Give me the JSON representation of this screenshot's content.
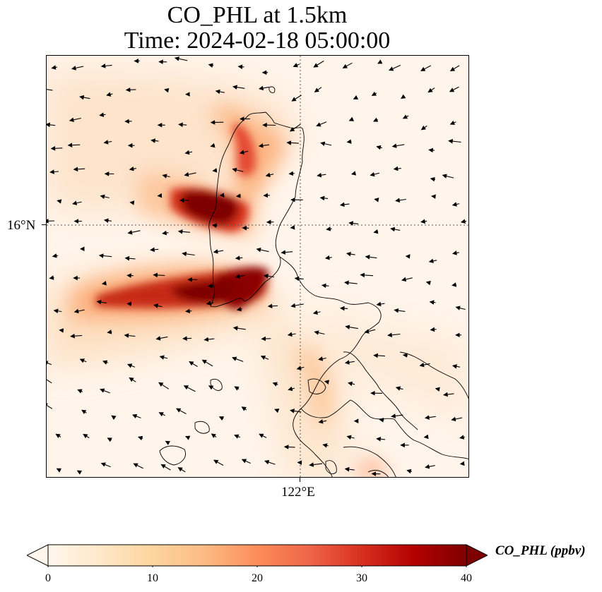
{
  "title": {
    "line1": "CO_PHL at 1.5km",
    "line2": "Time: 2024-02-18 05:00:00"
  },
  "axes": {
    "lat_tick": "16°N",
    "lon_tick": "122°E",
    "gridlines": true
  },
  "colorbar": {
    "label": "CO_PHL (ppbv)",
    "ticks": [
      "0",
      "10",
      "20",
      "30",
      "40"
    ],
    "min": 0,
    "max": 40,
    "colormap": "OrRd",
    "extend": "both",
    "stops": [
      "#fff7ec",
      "#fee8c8",
      "#fdd49e",
      "#fdbb84",
      "#fc8d59",
      "#ef6548",
      "#d7301f",
      "#b30000",
      "#7f0000"
    ]
  },
  "map": {
    "background_color": "#fff5eb",
    "field_description": "CO concentration field with two strong plumes over northern Luzon, wind vectors overlaid",
    "coastline_color": "#000000"
  }
}
